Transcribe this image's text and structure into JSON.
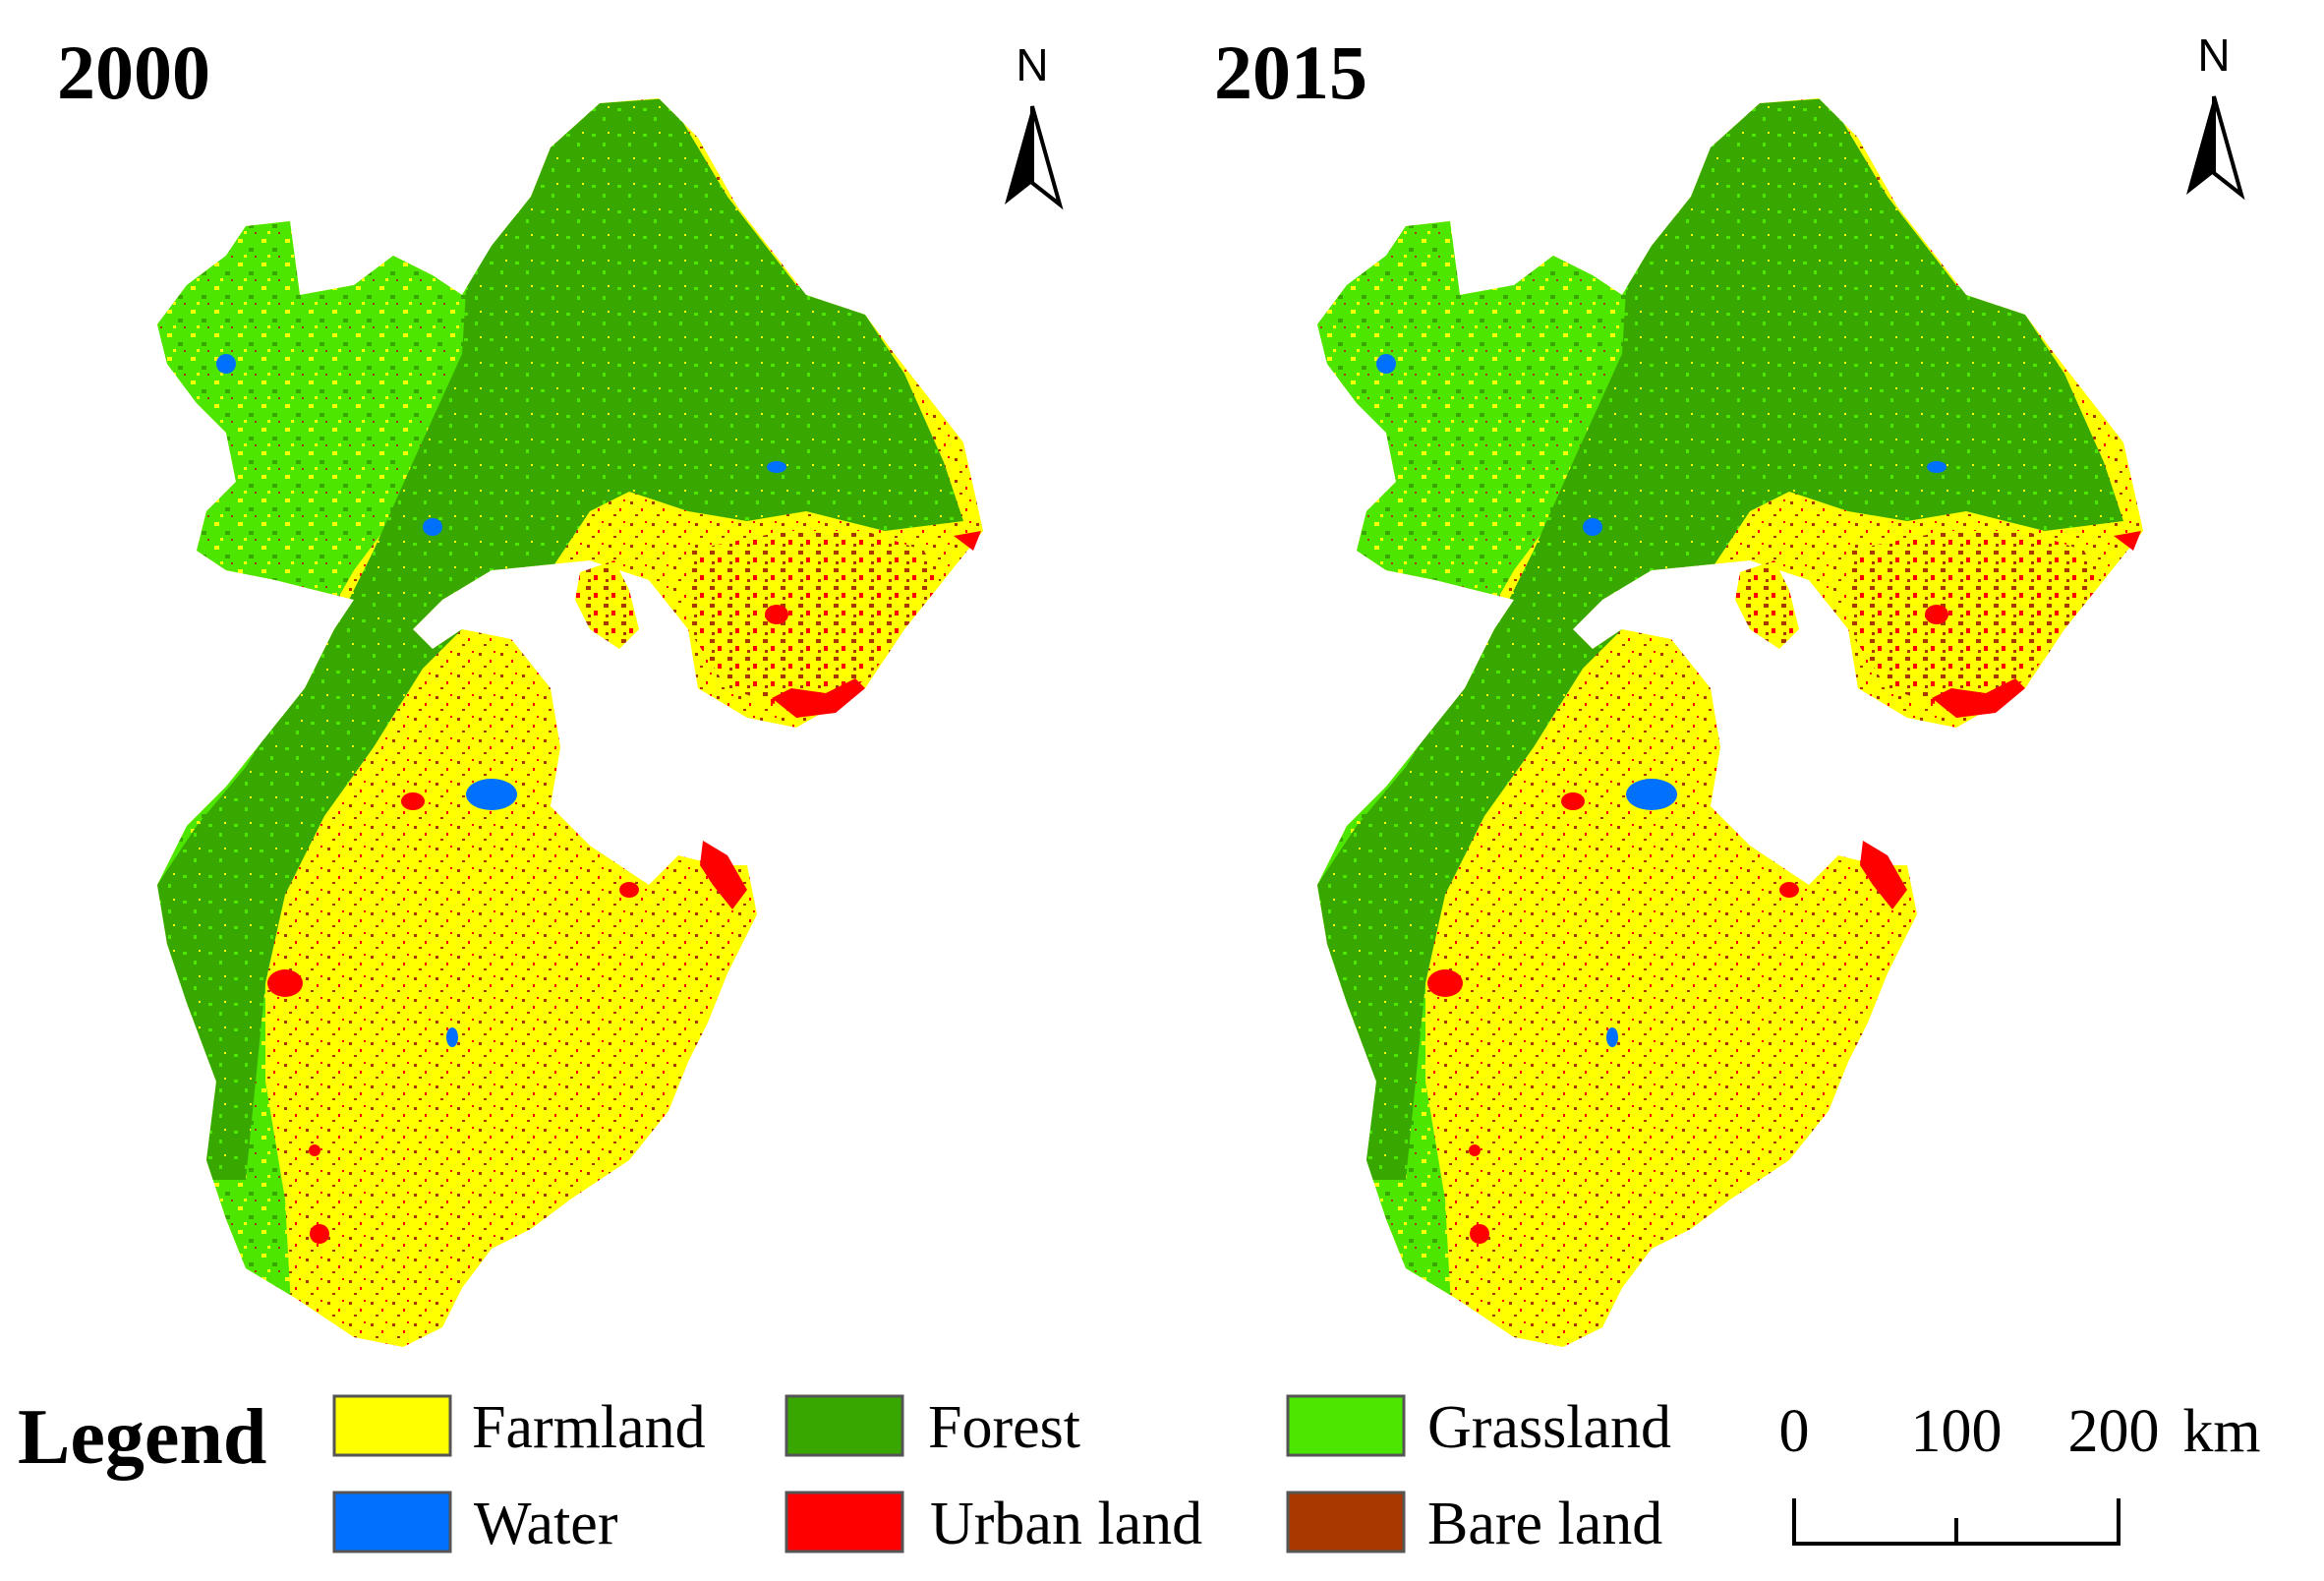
{
  "maps": [
    {
      "year": "2000"
    },
    {
      "year": "2015"
    }
  ],
  "north_arrow": {
    "label": "N"
  },
  "legend": {
    "title": "Legend",
    "items": [
      {
        "label": "Farmland",
        "color": "#ffff00"
      },
      {
        "label": "Forest",
        "color": "#38a800"
      },
      {
        "label": "Grassland",
        "color": "#4ce600"
      },
      {
        "label": "Water",
        "color": "#0070ff"
      },
      {
        "label": "Urban land",
        "color": "#ff0000"
      },
      {
        "label": "Bare land",
        "color": "#a83800"
      }
    ]
  },
  "scale_bar": {
    "ticks": [
      "0",
      "100",
      "200"
    ],
    "unit": "km"
  }
}
